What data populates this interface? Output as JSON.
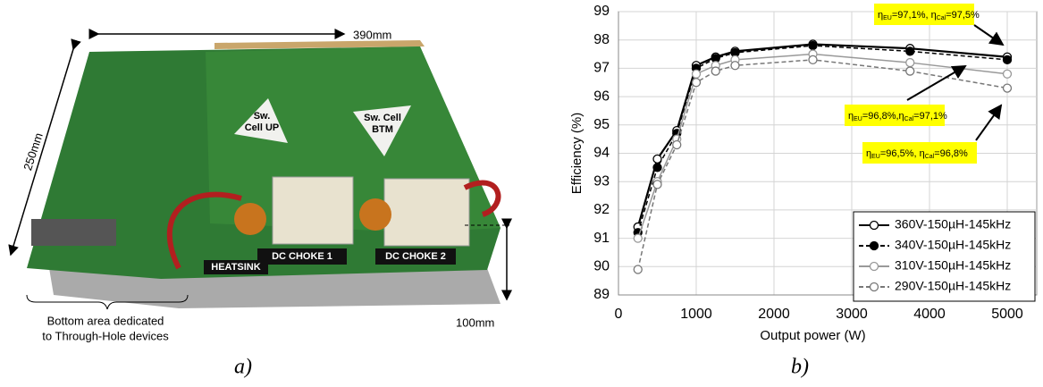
{
  "photo": {
    "dim_top": "390mm",
    "dim_left": "250mm",
    "dim_right": "100mm",
    "sw_up": [
      "Sw.",
      "Cell UP"
    ],
    "sw_btm": [
      "Sw. Cell",
      "BTM"
    ],
    "choke1": "DC CHOKE 1",
    "choke2": "DC CHOKE 2",
    "heatsink": "HEATSINK",
    "bottom_note": [
      "Bottom area dedicated",
      "to Through-Hole devices"
    ]
  },
  "captions": [
    "a)",
    "b)"
  ],
  "chart_data": {
    "type": "line",
    "x_label": "Output power (W)",
    "y_label": "Efficiency (%)",
    "x": [
      250,
      500,
      750,
      1000,
      1250,
      1500,
      2500,
      3750,
      5000
    ],
    "series": [
      {
        "name": "360V-150µH-145kHz",
        "color": "#000000",
        "dashed": false,
        "marker_fill": "#ffffff",
        "values": [
          91.4,
          93.8,
          94.8,
          97.1,
          97.4,
          97.6,
          97.85,
          97.7,
          97.4
        ]
      },
      {
        "name": "340V-150µH-145kHz",
        "color": "#000000",
        "dashed": true,
        "marker_fill": "#000000",
        "values": [
          91.2,
          93.5,
          94.7,
          97.0,
          97.35,
          97.55,
          97.8,
          97.6,
          97.3
        ]
      },
      {
        "name": "310V-150µH-145kHz",
        "color": "#999999",
        "dashed": false,
        "marker_fill": "#ffffff",
        "values": [
          91.0,
          93.0,
          94.5,
          96.8,
          97.1,
          97.3,
          97.5,
          97.2,
          96.8
        ]
      },
      {
        "name": "290V-150µH-145kHz",
        "color": "#777777",
        "dashed": true,
        "marker_fill": "#ffffff",
        "values": [
          89.9,
          92.9,
          94.3,
          96.5,
          96.9,
          97.1,
          97.3,
          96.9,
          96.3
        ]
      }
    ],
    "xlim": [
      0,
      5000
    ],
    "xticks": [
      0,
      1000,
      2000,
      3000,
      4000,
      5000
    ],
    "ylim": [
      89,
      99
    ],
    "yticks": [
      89,
      90,
      91,
      92,
      93,
      94,
      95,
      96,
      97,
      98,
      99
    ],
    "grid": true,
    "legend": "lower right",
    "annotations": [
      {
        "parts": [
          "η",
          "EU",
          "=97,1%, η",
          "Cal",
          "=97,5%"
        ]
      },
      {
        "parts": [
          "η",
          "EU",
          "=96,8%,η",
          "Cal",
          "=97,1%"
        ]
      },
      {
        "parts": [
          "η",
          "EU",
          "=96,5%, η",
          "Cal",
          "=96,8%"
        ]
      }
    ]
  }
}
